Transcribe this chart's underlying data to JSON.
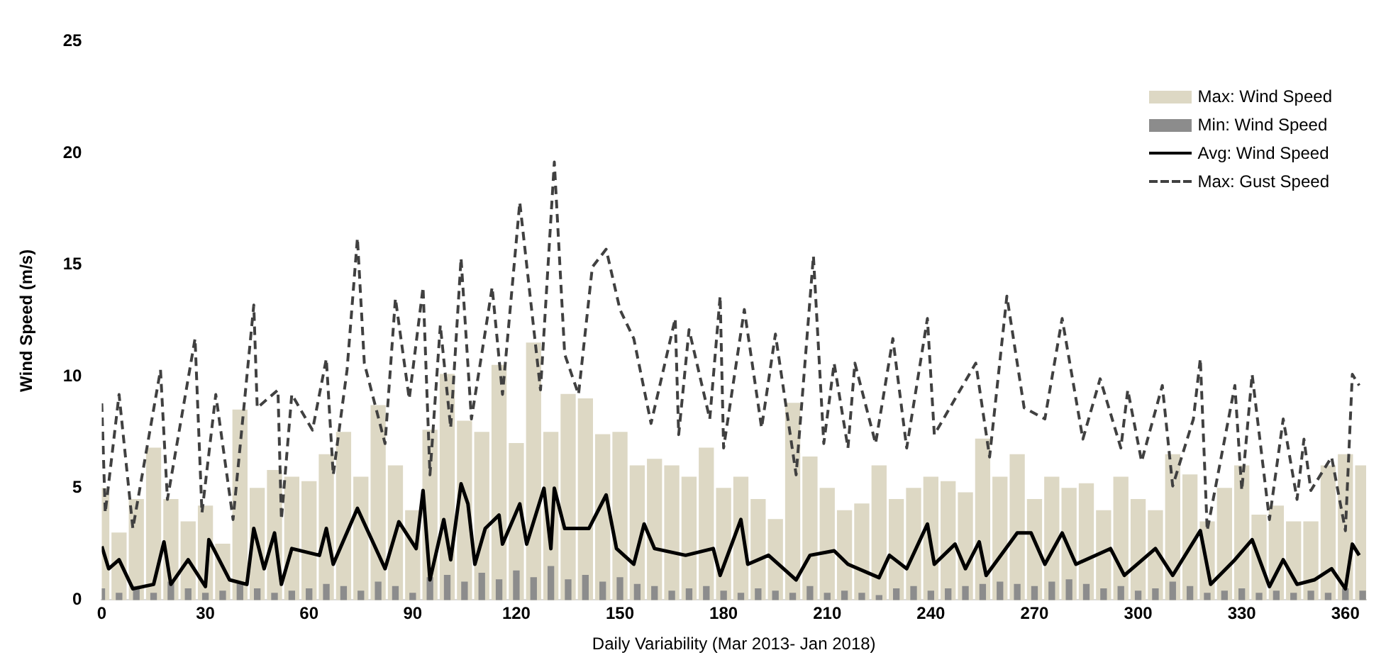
{
  "chart_data": {
    "type": "line",
    "xlabel": "Daily Variability (Mar 2013- Jan 2018)",
    "ylabel": "Wind Speed (m/s)",
    "xlim": [
      0,
      366
    ],
    "xticks": [
      0,
      30,
      60,
      90,
      120,
      150,
      180,
      210,
      240,
      270,
      300,
      330,
      360
    ],
    "ylim": [
      0,
      25
    ],
    "yticks": [
      0,
      5,
      10,
      15,
      20,
      25
    ],
    "grid": false,
    "legend": "top right",
    "series": [
      {
        "name": "Max: Wind Speed",
        "type": "bar",
        "color": "#ddd8c4",
        "x": [
          0,
          5,
          10,
          15,
          20,
          25,
          30,
          35,
          40,
          45,
          50,
          55,
          60,
          65,
          70,
          75,
          80,
          85,
          90,
          95,
          100,
          105,
          110,
          115,
          120,
          125,
          130,
          135,
          140,
          145,
          150,
          155,
          160,
          165,
          170,
          175,
          180,
          185,
          190,
          195,
          200,
          205,
          210,
          215,
          220,
          225,
          230,
          235,
          240,
          245,
          250,
          255,
          260,
          265,
          270,
          275,
          280,
          285,
          290,
          295,
          300,
          305,
          310,
          315,
          320,
          325,
          330,
          335,
          340,
          345,
          350,
          355,
          360,
          365
        ],
        "values": [
          5,
          3,
          4.5,
          6.8,
          4.5,
          3.5,
          4.2,
          2.5,
          8.5,
          5,
          5.8,
          5.5,
          5.3,
          6.5,
          7.5,
          5.5,
          8.7,
          6,
          4,
          7.6,
          10.1,
          8,
          7.5,
          10.5,
          7,
          11.5,
          7.5,
          9.2,
          9,
          7.4,
          7.5,
          6,
          6.3,
          6,
          5.5,
          6.8,
          5,
          5.5,
          4.5,
          3.6,
          8.8,
          6.4,
          5,
          4,
          4.3,
          6,
          4.5,
          5,
          5.5,
          5.3,
          4.8,
          7.2,
          5.5,
          6.5,
          4.5,
          5.5,
          5,
          5.2,
          4,
          5.5,
          4.5,
          4,
          6.5,
          5.6,
          3.5,
          5,
          6,
          3.8,
          4.2,
          3.5,
          3.5,
          6,
          6.5,
          6
        ]
      },
      {
        "name": "Min: Wind Speed",
        "type": "bar",
        "color": "#8c8c8c",
        "x": [
          0,
          5,
          10,
          15,
          20,
          25,
          30,
          35,
          40,
          45,
          50,
          55,
          60,
          65,
          70,
          75,
          80,
          85,
          90,
          95,
          100,
          105,
          110,
          115,
          120,
          125,
          130,
          135,
          140,
          145,
          150,
          155,
          160,
          165,
          170,
          175,
          180,
          185,
          190,
          195,
          200,
          205,
          210,
          215,
          220,
          225,
          230,
          235,
          240,
          245,
          250,
          255,
          260,
          265,
          270,
          275,
          280,
          285,
          290,
          295,
          300,
          305,
          310,
          315,
          320,
          325,
          330,
          335,
          340,
          345,
          350,
          355,
          360,
          365
        ],
        "values": [
          0.5,
          0.3,
          0.6,
          0.3,
          0.8,
          0.5,
          0.3,
          0.4,
          0.8,
          0.5,
          0.3,
          0.4,
          0.5,
          0.7,
          0.6,
          0.4,
          0.8,
          0.6,
          0.3,
          1,
          1.1,
          0.8,
          1.2,
          0.9,
          1.3,
          1,
          1.5,
          0.9,
          1.1,
          0.8,
          1,
          0.7,
          0.6,
          0.4,
          0.5,
          0.6,
          0.4,
          0.3,
          0.5,
          0.4,
          0.3,
          0.6,
          0.3,
          0.4,
          0.3,
          0.2,
          0.5,
          0.6,
          0.4,
          0.5,
          0.6,
          0.7,
          0.8,
          0.7,
          0.6,
          0.8,
          0.9,
          0.7,
          0.5,
          0.6,
          0.4,
          0.5,
          0.8,
          0.6,
          0.3,
          0.4,
          0.5,
          0.3,
          0.4,
          0.3,
          0.4,
          0.3,
          0.5,
          0.4
        ]
      },
      {
        "name": "Avg: Wind Speed",
        "color": "#000000",
        "line_style": "solid",
        "x": [
          0,
          2,
          5,
          9,
          15,
          18,
          20,
          25,
          30,
          31,
          37,
          42,
          44,
          47,
          50,
          52,
          55,
          63,
          65,
          67,
          74,
          82,
          86,
          91,
          93,
          95,
          99,
          101,
          104,
          106,
          108,
          111,
          115,
          116,
          121,
          123,
          128,
          130,
          131,
          134,
          141,
          146,
          149,
          154,
          157,
          160,
          169,
          177,
          179,
          185,
          187,
          193,
          201,
          205,
          212,
          216,
          225,
          228,
          233,
          239,
          241,
          247,
          250,
          254,
          256,
          265,
          269,
          273,
          278,
          282,
          292,
          296,
          305,
          310,
          318,
          321,
          328,
          333,
          338,
          342,
          346,
          351,
          356,
          360,
          362,
          364
        ],
        "values": [
          2.4,
          1.4,
          1.8,
          0.5,
          0.7,
          2.6,
          0.7,
          1.8,
          0.6,
          2.7,
          0.9,
          0.7,
          3.2,
          1.4,
          3,
          0.7,
          2.3,
          2,
          3.2,
          1.6,
          4.1,
          1.4,
          3.5,
          2.3,
          4.9,
          0.9,
          3.6,
          1.8,
          5.2,
          4.3,
          1.6,
          3.2,
          3.8,
          2.5,
          4.3,
          2.5,
          5,
          2.3,
          5,
          3.2,
          3.2,
          4.7,
          2.3,
          1.6,
          3.4,
          2.3,
          2,
          2.3,
          1.1,
          3.6,
          1.6,
          2,
          0.9,
          2,
          2.2,
          1.6,
          1,
          2,
          1.4,
          3.4,
          1.6,
          2.5,
          1.4,
          2.6,
          1.1,
          3,
          3,
          1.6,
          3,
          1.6,
          2.3,
          1.1,
          2.3,
          1.1,
          3.1,
          0.7,
          1.8,
          2.7,
          0.6,
          1.8,
          0.7,
          0.9,
          1.4,
          0.5,
          2.5,
          2
        ]
      },
      {
        "name": "Max: Gust Speed",
        "color": "#404040",
        "line_style": "dashed",
        "x": [
          0,
          1,
          5,
          9,
          17,
          19,
          27,
          29,
          33,
          38,
          44,
          45,
          51,
          52,
          55,
          61,
          65,
          67,
          71,
          74,
          76,
          82,
          85,
          89,
          93,
          95,
          98,
          101,
          104,
          107,
          111,
          113,
          116,
          121,
          127,
          131,
          134,
          138,
          142,
          146,
          150,
          154,
          159,
          166,
          167,
          170,
          176,
          179,
          180,
          186,
          191,
          195,
          201,
          206,
          209,
          212,
          216,
          218,
          224,
          229,
          233,
          239,
          241,
          253,
          257,
          262,
          267,
          273,
          278,
          284,
          289,
          295,
          297,
          301,
          307,
          310,
          316,
          318,
          320,
          328,
          330,
          333,
          338,
          342,
          346,
          348,
          350,
          356,
          360,
          362,
          364
        ],
        "values": [
          8.8,
          3.9,
          9.2,
          3.2,
          10.3,
          4.5,
          11.7,
          3.9,
          9.2,
          3.6,
          13.2,
          8.6,
          9.4,
          3.6,
          9.2,
          7.6,
          10.8,
          5.6,
          10.3,
          16.2,
          10.6,
          7,
          13.5,
          9,
          14,
          5.6,
          12.3,
          7.7,
          15.3,
          8.1,
          12,
          14,
          9.2,
          17.8,
          9.4,
          19.6,
          11,
          9.2,
          14.9,
          15.7,
          13,
          11.7,
          7.9,
          12.6,
          7.4,
          12.1,
          8.1,
          13.6,
          6.8,
          13,
          7.7,
          11.9,
          5.6,
          15.4,
          7,
          10.6,
          6.8,
          10.6,
          7,
          11.7,
          6.8,
          12.6,
          7.4,
          10.6,
          6.4,
          13.6,
          8.6,
          8.1,
          12.6,
          7.2,
          9.9,
          6.8,
          9.4,
          6.2,
          9.6,
          5.1,
          8.1,
          10.8,
          3.1,
          9.6,
          4.9,
          10.1,
          3.6,
          8.1,
          4.5,
          7.2,
          4.9,
          6.4,
          3.1,
          10.1,
          9.6
        ]
      }
    ]
  }
}
